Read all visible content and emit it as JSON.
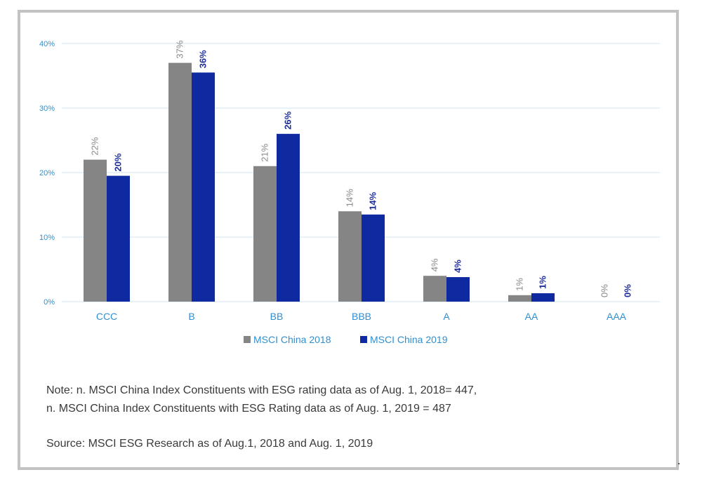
{
  "colors": {
    "series_2018": "#858585",
    "series_2019": "#0f2aa0",
    "axis_text": "#2f8fd0",
    "gridline": "#cfe5f5",
    "label_2018": "#8a8a8a",
    "label_2019": "#1f2f9a"
  },
  "chart_data": {
    "type": "bar",
    "categories": [
      "CCC",
      "B",
      "BB",
      "BBB",
      "A",
      "AA",
      "AAA"
    ],
    "series": [
      {
        "name": "MSCI China 2018",
        "values": [
          22,
          37,
          21,
          14,
          4,
          1,
          0
        ],
        "labels": [
          "22%",
          "37%",
          "21%",
          "14%",
          "4%",
          "1%",
          "0%"
        ]
      },
      {
        "name": "MSCI China 2019",
        "values": [
          19.5,
          35.5,
          26,
          13.5,
          3.8,
          1.3,
          0
        ],
        "labels": [
          "20%",
          "36%",
          "26%",
          "14%",
          "4%",
          "1%",
          "0%"
        ]
      }
    ],
    "yticks": [
      "0%",
      "10%",
      "20%",
      "30%",
      "40%"
    ],
    "ylim": [
      0,
      40
    ],
    "grid": true,
    "legend_position": "bottom"
  },
  "notes": {
    "line1": "Note: n. MSCI China Index Constituents with ESG rating data as of Aug. 1, 2018= 447,",
    "line2": "n. MSCI China Index Constituents with ESG Rating data as of Aug. 1, 2019 = 487",
    "source": "Source: MSCI ESG Research  as of Aug.1, 2018 and Aug. 1, 2019"
  }
}
